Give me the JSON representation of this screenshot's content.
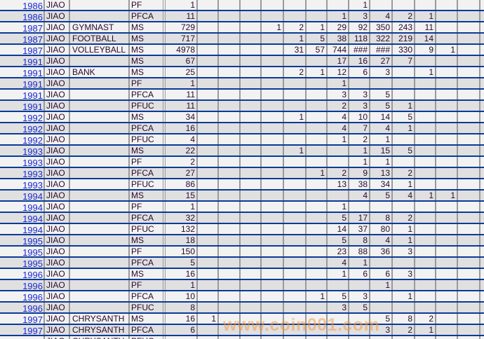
{
  "sheet": {
    "colors": {
      "year_text": "#1a2ad0",
      "row_border": "#0a3a98",
      "row_even": "#f2f2f2",
      "row_odd": "#e0e0e0",
      "grid": "#9a9a9a"
    },
    "rows": [
      {
        "year": "1986",
        "dept": "JIAO",
        "name": "",
        "type": "PF",
        "count": "1",
        "vals": {
          "7": "1"
        }
      },
      {
        "year": "1986",
        "dept": "JIAO",
        "name": "",
        "type": "PFCA",
        "count": "11",
        "vals": {
          "6": "1",
          "7": "3",
          "8": "4",
          "9": "2",
          "10": "1"
        }
      },
      {
        "year": "1987",
        "dept": "JIAO",
        "name": "GYMNAST",
        "type": "MS",
        "count": "729",
        "vals": {
          "3": "1",
          "4": "2",
          "5": "1",
          "6": "29",
          "7": "92",
          "8": "350",
          "9": "243",
          "10": "11"
        }
      },
      {
        "year": "1987",
        "dept": "JIAO",
        "name": "FOOTBALL",
        "type": "MS",
        "count": "717",
        "vals": {
          "4": "1",
          "5": "5",
          "6": "38",
          "7": "118",
          "8": "322",
          "9": "219",
          "10": "14"
        }
      },
      {
        "year": "1987",
        "dept": "JIAO",
        "name": "VOLLEYBALL",
        "type": "MS",
        "count": "4978",
        "vals": {
          "4": "31",
          "5": "57",
          "6": "744",
          "7": "###",
          "8": "###",
          "9": "330",
          "10": "9",
          "11": "1"
        }
      },
      {
        "year": "1991",
        "dept": "JIAO",
        "name": "",
        "type": "MS",
        "count": "67",
        "vals": {
          "6": "17",
          "7": "16",
          "8": "27",
          "9": "7"
        }
      },
      {
        "year": "1991",
        "dept": "JIAO",
        "name": "BANK",
        "type": "MS",
        "count": "25",
        "vals": {
          "4": "2",
          "5": "1",
          "6": "12",
          "7": "6",
          "8": "3",
          "10": "1"
        }
      },
      {
        "year": "1991",
        "dept": "JIAO",
        "name": "",
        "type": "PF",
        "count": "1",
        "vals": {
          "6": "1"
        }
      },
      {
        "year": "1991",
        "dept": "JIAO",
        "name": "",
        "type": "PFCA",
        "count": "11",
        "vals": {
          "6": "3",
          "7": "3",
          "8": "5"
        }
      },
      {
        "year": "1991",
        "dept": "JIAO",
        "name": "",
        "type": "PFUC",
        "count": "11",
        "vals": {
          "6": "2",
          "7": "3",
          "8": "5",
          "9": "1"
        }
      },
      {
        "year": "1992",
        "dept": "JIAO",
        "name": "",
        "type": "MS",
        "count": "34",
        "vals": {
          "4": "1",
          "6": "4",
          "7": "10",
          "8": "14",
          "9": "5"
        }
      },
      {
        "year": "1992",
        "dept": "JIAO",
        "name": "",
        "type": "PFCA",
        "count": "16",
        "vals": {
          "6": "4",
          "7": "7",
          "8": "4",
          "9": "1"
        }
      },
      {
        "year": "1992",
        "dept": "JIAO",
        "name": "",
        "type": "PFUC",
        "count": "4",
        "vals": {
          "6": "1",
          "7": "2",
          "8": "1"
        }
      },
      {
        "year": "1993",
        "dept": "JIAO",
        "name": "",
        "type": "MS",
        "count": "22",
        "vals": {
          "4": "1",
          "7": "1",
          "8": "15",
          "9": "5"
        }
      },
      {
        "year": "1993",
        "dept": "JIAO",
        "name": "",
        "type": "PF",
        "count": "2",
        "vals": {
          "7": "1",
          "8": "1"
        }
      },
      {
        "year": "1993",
        "dept": "JIAO",
        "name": "",
        "type": "PFCA",
        "count": "27",
        "vals": {
          "5": "1",
          "6": "2",
          "7": "9",
          "8": "13",
          "9": "2"
        }
      },
      {
        "year": "1993",
        "dept": "JIAO",
        "name": "",
        "type": "PFUC",
        "count": "86",
        "vals": {
          "6": "13",
          "7": "38",
          "8": "34",
          "9": "1"
        }
      },
      {
        "year": "1994",
        "dept": "JIAO",
        "name": "",
        "type": "MS",
        "count": "15",
        "vals": {
          "7": "4",
          "8": "5",
          "9": "4",
          "10": "1",
          "11": "1"
        }
      },
      {
        "year": "1994",
        "dept": "JIAO",
        "name": "",
        "type": "PF",
        "count": "1",
        "vals": {
          "6": "1"
        }
      },
      {
        "year": "1994",
        "dept": "JIAO",
        "name": "",
        "type": "PFCA",
        "count": "32",
        "vals": {
          "6": "5",
          "7": "17",
          "8": "8",
          "9": "2"
        }
      },
      {
        "year": "1994",
        "dept": "JIAO",
        "name": "",
        "type": "PFUC",
        "count": "132",
        "vals": {
          "6": "14",
          "7": "37",
          "8": "80",
          "9": "1"
        }
      },
      {
        "year": "1995",
        "dept": "JIAO",
        "name": "",
        "type": "MS",
        "count": "18",
        "vals": {
          "6": "5",
          "7": "8",
          "8": "4",
          "9": "1"
        }
      },
      {
        "year": "1995",
        "dept": "JIAO",
        "name": "",
        "type": "PF",
        "count": "150",
        "vals": {
          "6": "23",
          "7": "88",
          "8": "36",
          "9": "3"
        }
      },
      {
        "year": "1995",
        "dept": "JIAO",
        "name": "",
        "type": "PFCA",
        "count": "5",
        "vals": {
          "6": "4",
          "7": "1"
        }
      },
      {
        "year": "1996",
        "dept": "JIAO",
        "name": "",
        "type": "MS",
        "count": "16",
        "vals": {
          "6": "1",
          "7": "6",
          "8": "6",
          "9": "3"
        }
      },
      {
        "year": "1996",
        "dept": "JIAO",
        "name": "",
        "type": "PF",
        "count": "1",
        "vals": {
          "8": "1"
        }
      },
      {
        "year": "1996",
        "dept": "JIAO",
        "name": "",
        "type": "PFCA",
        "count": "10",
        "vals": {
          "5": "1",
          "6": "5",
          "7": "3",
          "9": "1"
        }
      },
      {
        "year": "1996",
        "dept": "JIAO",
        "name": "",
        "type": "PFUC",
        "count": "8",
        "vals": {
          "6": "3",
          "7": "5"
        }
      },
      {
        "year": "1997",
        "dept": "JIAO",
        "name": "CHRYSANTH",
        "type": "MS",
        "count": "16",
        "vals": {
          "0": "1",
          "8": "5",
          "9": "8",
          "10": "2"
        }
      },
      {
        "year": "1997",
        "dept": "JIAO",
        "name": "CHRYSANTH",
        "type": "PFCA",
        "count": "6",
        "vals": {
          "8": "3",
          "9": "2",
          "10": "1"
        }
      },
      {
        "year": "",
        "dept": "JIAO",
        "name": "CHRYSANTH",
        "type": "PFUC",
        "count": "",
        "vals": {}
      }
    ]
  },
  "watermark": "www.coin001.com"
}
